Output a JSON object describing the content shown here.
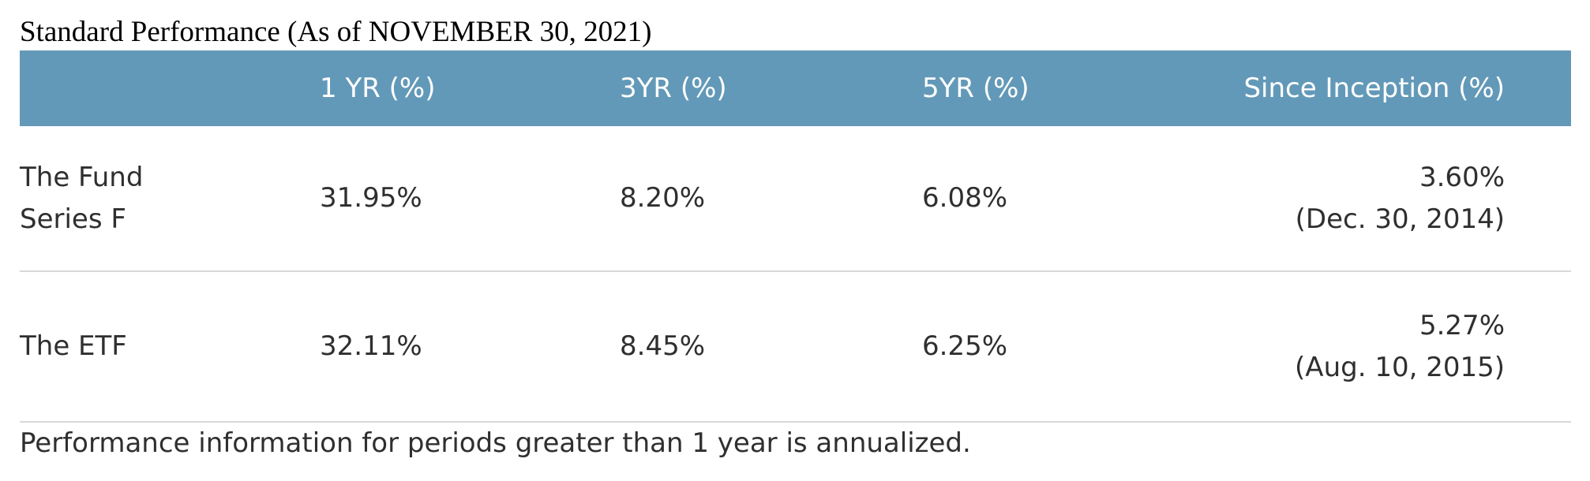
{
  "title": "Standard Performance (As of NOVEMBER 30, 2021)",
  "colors": {
    "header_bg": "#6399b8",
    "header_text": "#ffffff",
    "body_text": "#2f2f2f",
    "row_divider": "#d9d9d9"
  },
  "table": {
    "headers": [
      "",
      "1 YR (%)",
      "3YR (%)",
      "5YR (%)",
      "Since Inception (%)"
    ],
    "rows": [
      {
        "name_line1": "The Fund",
        "name_line2": "Series F",
        "one_yr": "31.95%",
        "three_yr": "8.20%",
        "five_yr": "6.08%",
        "since_inception": "3.60%",
        "inception_date": "(Dec. 30, 2014)"
      },
      {
        "name_line1": "The ETF",
        "name_line2": "",
        "one_yr": "32.11%",
        "three_yr": "8.45%",
        "five_yr": "6.25%",
        "since_inception": "5.27%",
        "inception_date": "(Aug. 10, 2015)"
      }
    ]
  },
  "footnote": "Performance information for periods greater than 1 year is annualized."
}
